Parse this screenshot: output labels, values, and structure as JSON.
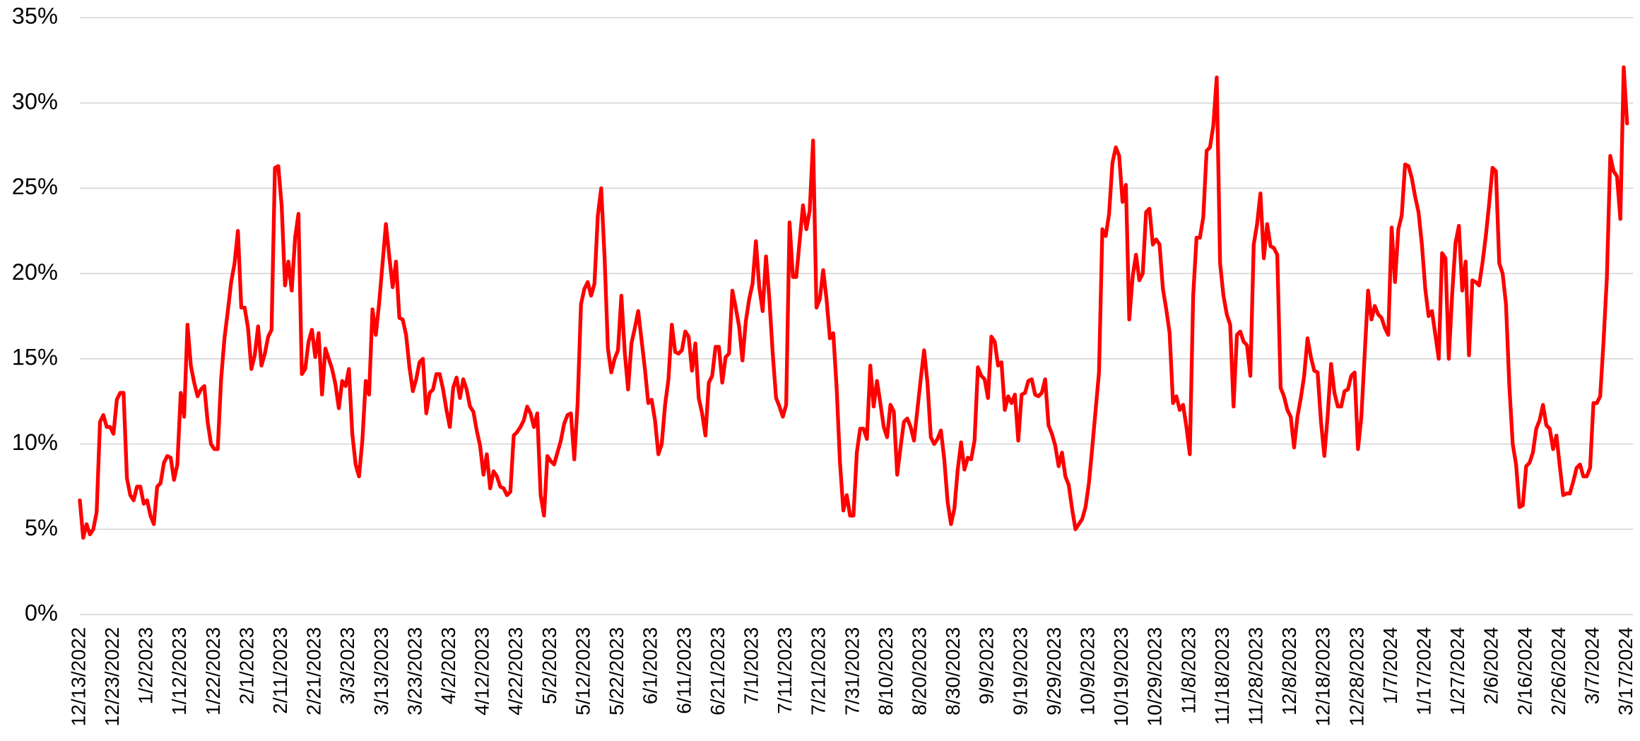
{
  "chart_data": {
    "type": "line",
    "color": "#ff0000",
    "grid": true,
    "xlim": [
      "12/13/2022",
      "3/17/2024"
    ],
    "ylim": [
      0,
      35
    ],
    "yticks": [
      {
        "value": 0,
        "label": "0%"
      },
      {
        "value": 5,
        "label": "5%"
      },
      {
        "value": 10,
        "label": "10%"
      },
      {
        "value": 15,
        "label": "15%"
      },
      {
        "value": 20,
        "label": "20%"
      },
      {
        "value": 25,
        "label": "25%"
      },
      {
        "value": 30,
        "label": "30%"
      },
      {
        "value": 35,
        "label": "35%"
      }
    ],
    "xticks": [
      "12/13/2022",
      "12/23/2022",
      "1/2/2023",
      "1/12/2023",
      "1/22/2023",
      "2/1/2023",
      "2/11/2023",
      "2/21/2023",
      "3/3/2023",
      "3/13/2023",
      "3/23/2023",
      "4/2/2023",
      "4/12/2023",
      "4/22/2023",
      "5/2/2023",
      "5/12/2023",
      "5/22/2023",
      "6/1/2023",
      "6/11/2023",
      "6/21/2023",
      "7/1/2023",
      "7/11/2023",
      "7/21/2023",
      "7/31/2023",
      "8/10/2023",
      "8/20/2023",
      "8/30/2023",
      "9/9/2023",
      "9/19/2023",
      "9/29/2023",
      "10/9/2023",
      "10/19/2023",
      "10/29/2023",
      "11/8/2023",
      "11/18/2023",
      "11/28/2023",
      "12/8/2023",
      "12/18/2023",
      "12/28/2023",
      "1/7/2024",
      "1/17/2024",
      "1/27/2024",
      "2/6/2024",
      "2/16/2024",
      "2/26/2024",
      "3/7/2024",
      "3/17/2024"
    ],
    "x": [
      "12/13/2022",
      "12/14/2022",
      "12/15/2022",
      "12/16/2022",
      "12/17/2022",
      "12/18/2022",
      "12/19/2022",
      "12/20/2022",
      "12/21/2022",
      "12/22/2022",
      "12/23/2022",
      "12/24/2022",
      "12/25/2022",
      "12/26/2022",
      "12/27/2022",
      "12/28/2022",
      "12/29/2022",
      "12/30/2022",
      "12/31/2022",
      "1/1/2023",
      "1/2/2023",
      "1/3/2023",
      "1/4/2023",
      "1/5/2023",
      "1/6/2023",
      "1/7/2023",
      "1/8/2023",
      "1/9/2023",
      "1/10/2023",
      "1/11/2023",
      "1/12/2023",
      "1/13/2023",
      "1/14/2023",
      "1/15/2023",
      "1/16/2023",
      "1/17/2023",
      "1/18/2023",
      "1/19/2023",
      "1/20/2023",
      "1/21/2023",
      "1/22/2023",
      "1/23/2023",
      "1/24/2023",
      "1/25/2023",
      "1/26/2023",
      "1/27/2023",
      "1/28/2023",
      "1/29/2023",
      "1/30/2023",
      "1/31/2023",
      "2/1/2023",
      "2/2/2023",
      "2/3/2023",
      "2/4/2023",
      "2/5/2023",
      "2/6/2023",
      "2/7/2023",
      "2/8/2023",
      "2/9/2023",
      "2/10/2023",
      "2/11/2023",
      "2/12/2023",
      "2/13/2023",
      "2/14/2023",
      "2/15/2023",
      "2/16/2023",
      "2/17/2023",
      "2/18/2023",
      "2/19/2023",
      "2/20/2023",
      "2/21/2023",
      "2/22/2023",
      "2/23/2023",
      "2/24/2023",
      "2/25/2023",
      "2/26/2023",
      "2/27/2023",
      "2/28/2023",
      "3/1/2023",
      "3/2/2023",
      "3/3/2023",
      "3/4/2023",
      "3/5/2023",
      "3/6/2023",
      "3/7/2023",
      "3/8/2023",
      "3/9/2023",
      "3/10/2023",
      "3/11/2023",
      "3/12/2023",
      "3/13/2023",
      "3/14/2023",
      "3/15/2023",
      "3/16/2023",
      "3/17/2023",
      "3/18/2023",
      "3/19/2023",
      "3/20/2023",
      "3/21/2023",
      "3/22/2023",
      "3/23/2023",
      "3/24/2023",
      "3/25/2023",
      "3/26/2023",
      "3/27/2023",
      "3/28/2023",
      "3/29/2023",
      "3/30/2023",
      "3/31/2023",
      "4/1/2023",
      "4/2/2023",
      "4/3/2023",
      "4/4/2023",
      "4/5/2023",
      "4/6/2023",
      "4/7/2023",
      "4/8/2023",
      "4/9/2023",
      "4/10/2023",
      "4/11/2023",
      "4/12/2023",
      "4/13/2023",
      "4/14/2023",
      "4/15/2023",
      "4/16/2023",
      "4/17/2023",
      "4/18/2023",
      "4/19/2023",
      "4/20/2023",
      "4/21/2023",
      "4/22/2023",
      "4/23/2023",
      "4/24/2023",
      "4/25/2023",
      "4/26/2023",
      "4/27/2023",
      "4/28/2023",
      "4/29/2023",
      "4/30/2023",
      "5/1/2023",
      "5/2/2023",
      "5/3/2023",
      "5/4/2023",
      "5/5/2023",
      "5/6/2023",
      "5/7/2023",
      "5/8/2023",
      "5/9/2023",
      "5/10/2023",
      "5/11/2023",
      "5/12/2023",
      "5/13/2023",
      "5/14/2023",
      "5/15/2023",
      "5/16/2023",
      "5/17/2023",
      "5/18/2023",
      "5/19/2023",
      "5/20/2023",
      "5/21/2023",
      "5/22/2023",
      "5/23/2023",
      "5/24/2023",
      "5/25/2023",
      "5/26/2023",
      "5/27/2023",
      "5/28/2023",
      "5/29/2023",
      "5/30/2023",
      "5/31/2023",
      "6/1/2023",
      "6/2/2023",
      "6/3/2023",
      "6/4/2023",
      "6/5/2023",
      "6/6/2023",
      "6/7/2023",
      "6/8/2023",
      "6/9/2023",
      "6/10/2023",
      "6/11/2023",
      "6/12/2023",
      "6/13/2023",
      "6/14/2023",
      "6/15/2023",
      "6/16/2023",
      "6/17/2023",
      "6/18/2023",
      "6/19/2023",
      "6/20/2023",
      "6/21/2023",
      "6/22/2023",
      "6/23/2023",
      "6/24/2023",
      "6/25/2023",
      "6/26/2023",
      "6/27/2023",
      "6/28/2023",
      "6/29/2023",
      "6/30/2023",
      "7/1/2023",
      "7/2/2023",
      "7/3/2023",
      "7/4/2023",
      "7/5/2023",
      "7/6/2023",
      "7/7/2023",
      "7/8/2023",
      "7/9/2023",
      "7/10/2023",
      "7/11/2023",
      "7/12/2023",
      "7/13/2023",
      "7/14/2023",
      "7/15/2023",
      "7/16/2023",
      "7/17/2023",
      "7/18/2023",
      "7/19/2023",
      "7/20/2023",
      "7/21/2023",
      "7/22/2023",
      "7/23/2023",
      "7/24/2023",
      "7/25/2023",
      "7/26/2023",
      "7/27/2023",
      "7/28/2023",
      "7/29/2023",
      "7/30/2023",
      "7/31/2023",
      "8/1/2023",
      "8/2/2023",
      "8/3/2023",
      "8/4/2023",
      "8/5/2023",
      "8/6/2023",
      "8/7/2023",
      "8/8/2023",
      "8/9/2023",
      "8/10/2023",
      "8/11/2023",
      "8/12/2023",
      "8/13/2023",
      "8/14/2023",
      "8/15/2023",
      "8/16/2023",
      "8/17/2023",
      "8/18/2023",
      "8/19/2023",
      "8/20/2023",
      "8/21/2023",
      "8/22/2023",
      "8/23/2023",
      "8/24/2023",
      "8/25/2023",
      "8/26/2023",
      "8/27/2023",
      "8/28/2023",
      "8/29/2023",
      "8/30/2023",
      "8/31/2023",
      "9/1/2023",
      "9/2/2023",
      "9/3/2023",
      "9/4/2023",
      "9/5/2023",
      "9/6/2023",
      "9/7/2023",
      "9/8/2023",
      "9/9/2023",
      "9/10/2023",
      "9/11/2023",
      "9/12/2023",
      "9/13/2023",
      "9/14/2023",
      "9/15/2023",
      "9/16/2023",
      "9/17/2023",
      "9/18/2023",
      "9/19/2023",
      "9/20/2023",
      "9/21/2023",
      "9/22/2023",
      "9/23/2023",
      "9/24/2023",
      "9/25/2023",
      "9/26/2023",
      "9/27/2023",
      "9/28/2023",
      "9/29/2023",
      "9/30/2023",
      "10/1/2023",
      "10/2/2023",
      "10/3/2023",
      "10/4/2023",
      "10/5/2023",
      "10/6/2023",
      "10/7/2023",
      "10/8/2023",
      "10/9/2023",
      "10/10/2023",
      "10/11/2023",
      "10/12/2023",
      "10/13/2023",
      "10/14/2023",
      "10/15/2023",
      "10/16/2023",
      "10/17/2023",
      "10/18/2023",
      "10/19/2023",
      "10/20/2023",
      "10/21/2023",
      "10/22/2023",
      "10/23/2023",
      "10/24/2023",
      "10/25/2023",
      "10/26/2023",
      "10/27/2023",
      "10/28/2023",
      "10/29/2023",
      "10/30/2023",
      "10/31/2023",
      "11/1/2023",
      "11/2/2023",
      "11/3/2023",
      "11/4/2023",
      "11/5/2023",
      "11/6/2023",
      "11/7/2023",
      "11/8/2023",
      "11/9/2023",
      "11/10/2023",
      "11/11/2023",
      "11/12/2023",
      "11/13/2023",
      "11/14/2023",
      "11/15/2023",
      "11/16/2023",
      "11/17/2023",
      "11/18/2023",
      "11/19/2023",
      "11/20/2023",
      "11/21/2023",
      "11/22/2023",
      "11/23/2023",
      "11/24/2023",
      "11/25/2023",
      "11/26/2023",
      "11/27/2023",
      "11/28/2023",
      "11/29/2023",
      "11/30/2023",
      "12/1/2023",
      "12/2/2023",
      "12/3/2023",
      "12/4/2023",
      "12/5/2023",
      "12/6/2023",
      "12/7/2023",
      "12/8/2023",
      "12/9/2023",
      "12/10/2023",
      "12/11/2023",
      "12/12/2023",
      "12/13/2023",
      "12/14/2023",
      "12/15/2023",
      "12/16/2023",
      "12/17/2023",
      "12/18/2023",
      "12/19/2023",
      "12/20/2023",
      "12/21/2023",
      "12/22/2023",
      "12/23/2023",
      "12/24/2023",
      "12/25/2023",
      "12/26/2023",
      "12/27/2023",
      "12/28/2023",
      "12/29/2023",
      "12/30/2023",
      "12/31/2023",
      "1/1/2024",
      "1/2/2024",
      "1/3/2024",
      "1/4/2024",
      "1/5/2024",
      "1/6/2024",
      "1/7/2024",
      "1/8/2024",
      "1/9/2024",
      "1/10/2024",
      "1/11/2024",
      "1/12/2024",
      "1/13/2024",
      "1/14/2024",
      "1/15/2024",
      "1/16/2024",
      "1/17/2024",
      "1/18/2024",
      "1/19/2024",
      "1/20/2024",
      "1/21/2024",
      "1/22/2024",
      "1/23/2024",
      "1/24/2024",
      "1/25/2024",
      "1/26/2024",
      "1/27/2024",
      "1/28/2024",
      "1/29/2024",
      "1/30/2024",
      "1/31/2024",
      "2/1/2024",
      "2/2/2024",
      "2/3/2024",
      "2/4/2024",
      "2/5/2024",
      "2/6/2024",
      "2/7/2024",
      "2/8/2024",
      "2/9/2024",
      "2/10/2024",
      "2/11/2024",
      "2/12/2024",
      "2/13/2024",
      "2/14/2024",
      "2/15/2024",
      "2/16/2024",
      "2/17/2024",
      "2/18/2024",
      "2/19/2024",
      "2/20/2024",
      "2/21/2024",
      "2/22/2024",
      "2/23/2024",
      "2/24/2024",
      "2/25/2024",
      "2/26/2024",
      "2/27/2024",
      "2/28/2024",
      "2/29/2024",
      "3/1/2024",
      "3/2/2024",
      "3/3/2024",
      "3/4/2024",
      "3/5/2024",
      "3/6/2024",
      "3/7/2024",
      "3/8/2024",
      "3/9/2024",
      "3/10/2024",
      "3/11/2024",
      "3/12/2024",
      "3/13/2024",
      "3/14/2024",
      "3/15/2024",
      "3/16/2024",
      "3/17/2024"
    ],
    "values": [
      6.7,
      4.5,
      5.3,
      4.7,
      5.0,
      6.0,
      11.3,
      11.7,
      11.0,
      11.0,
      10.6,
      12.6,
      13.0,
      13.0,
      8.0,
      7.0,
      6.7,
      7.5,
      7.5,
      6.5,
      6.7,
      5.8,
      5.3,
      7.5,
      7.7,
      8.9,
      9.3,
      9.2,
      7.9,
      8.8,
      13.0,
      11.6,
      17.0,
      14.6,
      13.6,
      12.8,
      13.2,
      13.4,
      11.3,
      10.0,
      9.7,
      9.7,
      13.8,
      16.2,
      17.8,
      19.5,
      20.6,
      22.5,
      18.0,
      18.0,
      16.8,
      14.4,
      15.2,
      16.9,
      14.6,
      15.3,
      16.3,
      16.7,
      26.2,
      26.3,
      24.0,
      19.3,
      20.7,
      19.0,
      22.1,
      23.5,
      14.1,
      14.4,
      16.0,
      16.7,
      15.1,
      16.5,
      12.9,
      15.6,
      15.0,
      14.4,
      13.5,
      12.1,
      13.7,
      13.4,
      14.4,
      10.6,
      8.8,
      8.1,
      10.2,
      13.7,
      12.9,
      17.9,
      16.4,
      18.3,
      20.6,
      22.9,
      21.0,
      19.2,
      20.7,
      17.4,
      17.3,
      16.4,
      14.5,
      13.1,
      13.8,
      14.8,
      15.0,
      11.8,
      13.0,
      13.2,
      14.1,
      14.1,
      13.2,
      12.0,
      11.0,
      13.3,
      13.9,
      12.7,
      13.8,
      13.2,
      12.2,
      11.9,
      10.8,
      9.9,
      8.2,
      9.4,
      7.4,
      8.4,
      8.1,
      7.5,
      7.4,
      7.0,
      7.2,
      10.5,
      10.7,
      11.0,
      11.4,
      12.2,
      11.8,
      11.0,
      11.8,
      7.0,
      5.8,
      9.3,
      9.0,
      8.8,
      9.5,
      10.2,
      11.2,
      11.7,
      11.8,
      9.1,
      12.4,
      18.2,
      19.1,
      19.5,
      18.7,
      19.4,
      23.4,
      25.0,
      21.0,
      15.6,
      14.2,
      15.0,
      15.5,
      18.7,
      15.4,
      13.2,
      15.9,
      16.8,
      17.8,
      16.1,
      14.4,
      12.4,
      12.6,
      11.4,
      9.4,
      10.0,
      12.3,
      13.8,
      17.0,
      15.4,
      15.3,
      15.5,
      16.6,
      16.3,
      14.3,
      15.9,
      12.7,
      11.8,
      10.5,
      13.6,
      14.0,
      15.7,
      15.7,
      13.6,
      15.1,
      15.3,
      19.0,
      18.0,
      16.9,
      14.9,
      17.2,
      18.5,
      19.4,
      21.9,
      19.2,
      17.8,
      21.0,
      18.5,
      15.3,
      12.7,
      12.2,
      11.6,
      12.3,
      23.0,
      19.8,
      19.8,
      21.9,
      24.0,
      22.6,
      23.7,
      27.8,
      18.0,
      18.5,
      20.2,
      18.5,
      16.2,
      16.5,
      13.3,
      8.9,
      6.1,
      7.0,
      5.8,
      5.8,
      9.5,
      10.9,
      10.9,
      10.3,
      14.6,
      12.2,
      13.7,
      12.4,
      11.0,
      10.4,
      12.3,
      11.9,
      8.2,
      9.8,
      11.3,
      11.5,
      11.0,
      10.2,
      12.0,
      13.8,
      15.5,
      13.6,
      10.4,
      10.0,
      10.3,
      10.8,
      9.1,
      6.6,
      5.3,
      6.2,
      8.5,
      10.1,
      8.5,
      9.2,
      9.1,
      10.2,
      14.5,
      14.0,
      13.8,
      12.7,
      16.3,
      16.0,
      14.6,
      14.8,
      12.0,
      12.8,
      12.4,
      12.9,
      10.2,
      12.9,
      13.0,
      13.7,
      13.8,
      12.9,
      12.8,
      13.0,
      13.8,
      11.1,
      10.6,
      9.9,
      8.7,
      9.5,
      8.1,
      7.6,
      6.2,
      5.0,
      5.3,
      5.6,
      6.3,
      7.7,
      9.8,
      12.0,
      14.2,
      22.6,
      22.2,
      23.5,
      26.5,
      27.4,
      26.9,
      24.2,
      25.2,
      17.3,
      19.8,
      21.1,
      19.6,
      20.0,
      23.6,
      23.8,
      21.7,
      22.0,
      21.7,
      19.1,
      17.9,
      16.5,
      12.4,
      12.8,
      12.0,
      12.3,
      11.0,
      9.4,
      18.7,
      22.1,
      22.1,
      23.3,
      27.2,
      27.4,
      28.7,
      31.5,
      20.6,
      18.7,
      17.6,
      17.0,
      12.2,
      16.4,
      16.6,
      16.0,
      15.8,
      14.0,
      21.7,
      22.9,
      24.7,
      20.9,
      22.9,
      21.6,
      21.5,
      21.1,
      13.3,
      12.8,
      12.0,
      11.6,
      9.8,
      11.6,
      12.7,
      14.0,
      16.2,
      15.1,
      14.3,
      14.2,
      11.3,
      9.3,
      11.7,
      14.7,
      13.0,
      12.2,
      12.2,
      13.1,
      13.2,
      14.0,
      14.2,
      9.7,
      11.6,
      15.3,
      19.0,
      17.3,
      18.1,
      17.6,
      17.4,
      16.8,
      16.4,
      22.7,
      19.5,
      22.6,
      23.4,
      26.4,
      26.3,
      25.6,
      24.5,
      23.6,
      21.7,
      19.1,
      17.5,
      17.8,
      16.4,
      15.0,
      21.2,
      20.9,
      15.0,
      18.8,
      21.8,
      22.8,
      19.0,
      20.7,
      15.2,
      19.6,
      19.5,
      19.3,
      20.6,
      22.2,
      24.1,
      26.2,
      26.0,
      20.6,
      20.0,
      18.2,
      13.4,
      10.0,
      8.8,
      6.3,
      6.4,
      8.7,
      8.9,
      9.5,
      10.9,
      11.4,
      12.3,
      11.1,
      10.9,
      9.7,
      10.5,
      8.7,
      7.0,
      7.1,
      7.1,
      7.8,
      8.6,
      8.8,
      8.1,
      8.1,
      8.6,
      12.4,
      12.4,
      12.8,
      16.0,
      19.8,
      26.9,
      26.0,
      25.7,
      23.2,
      32.1,
      28.8
    ]
  }
}
